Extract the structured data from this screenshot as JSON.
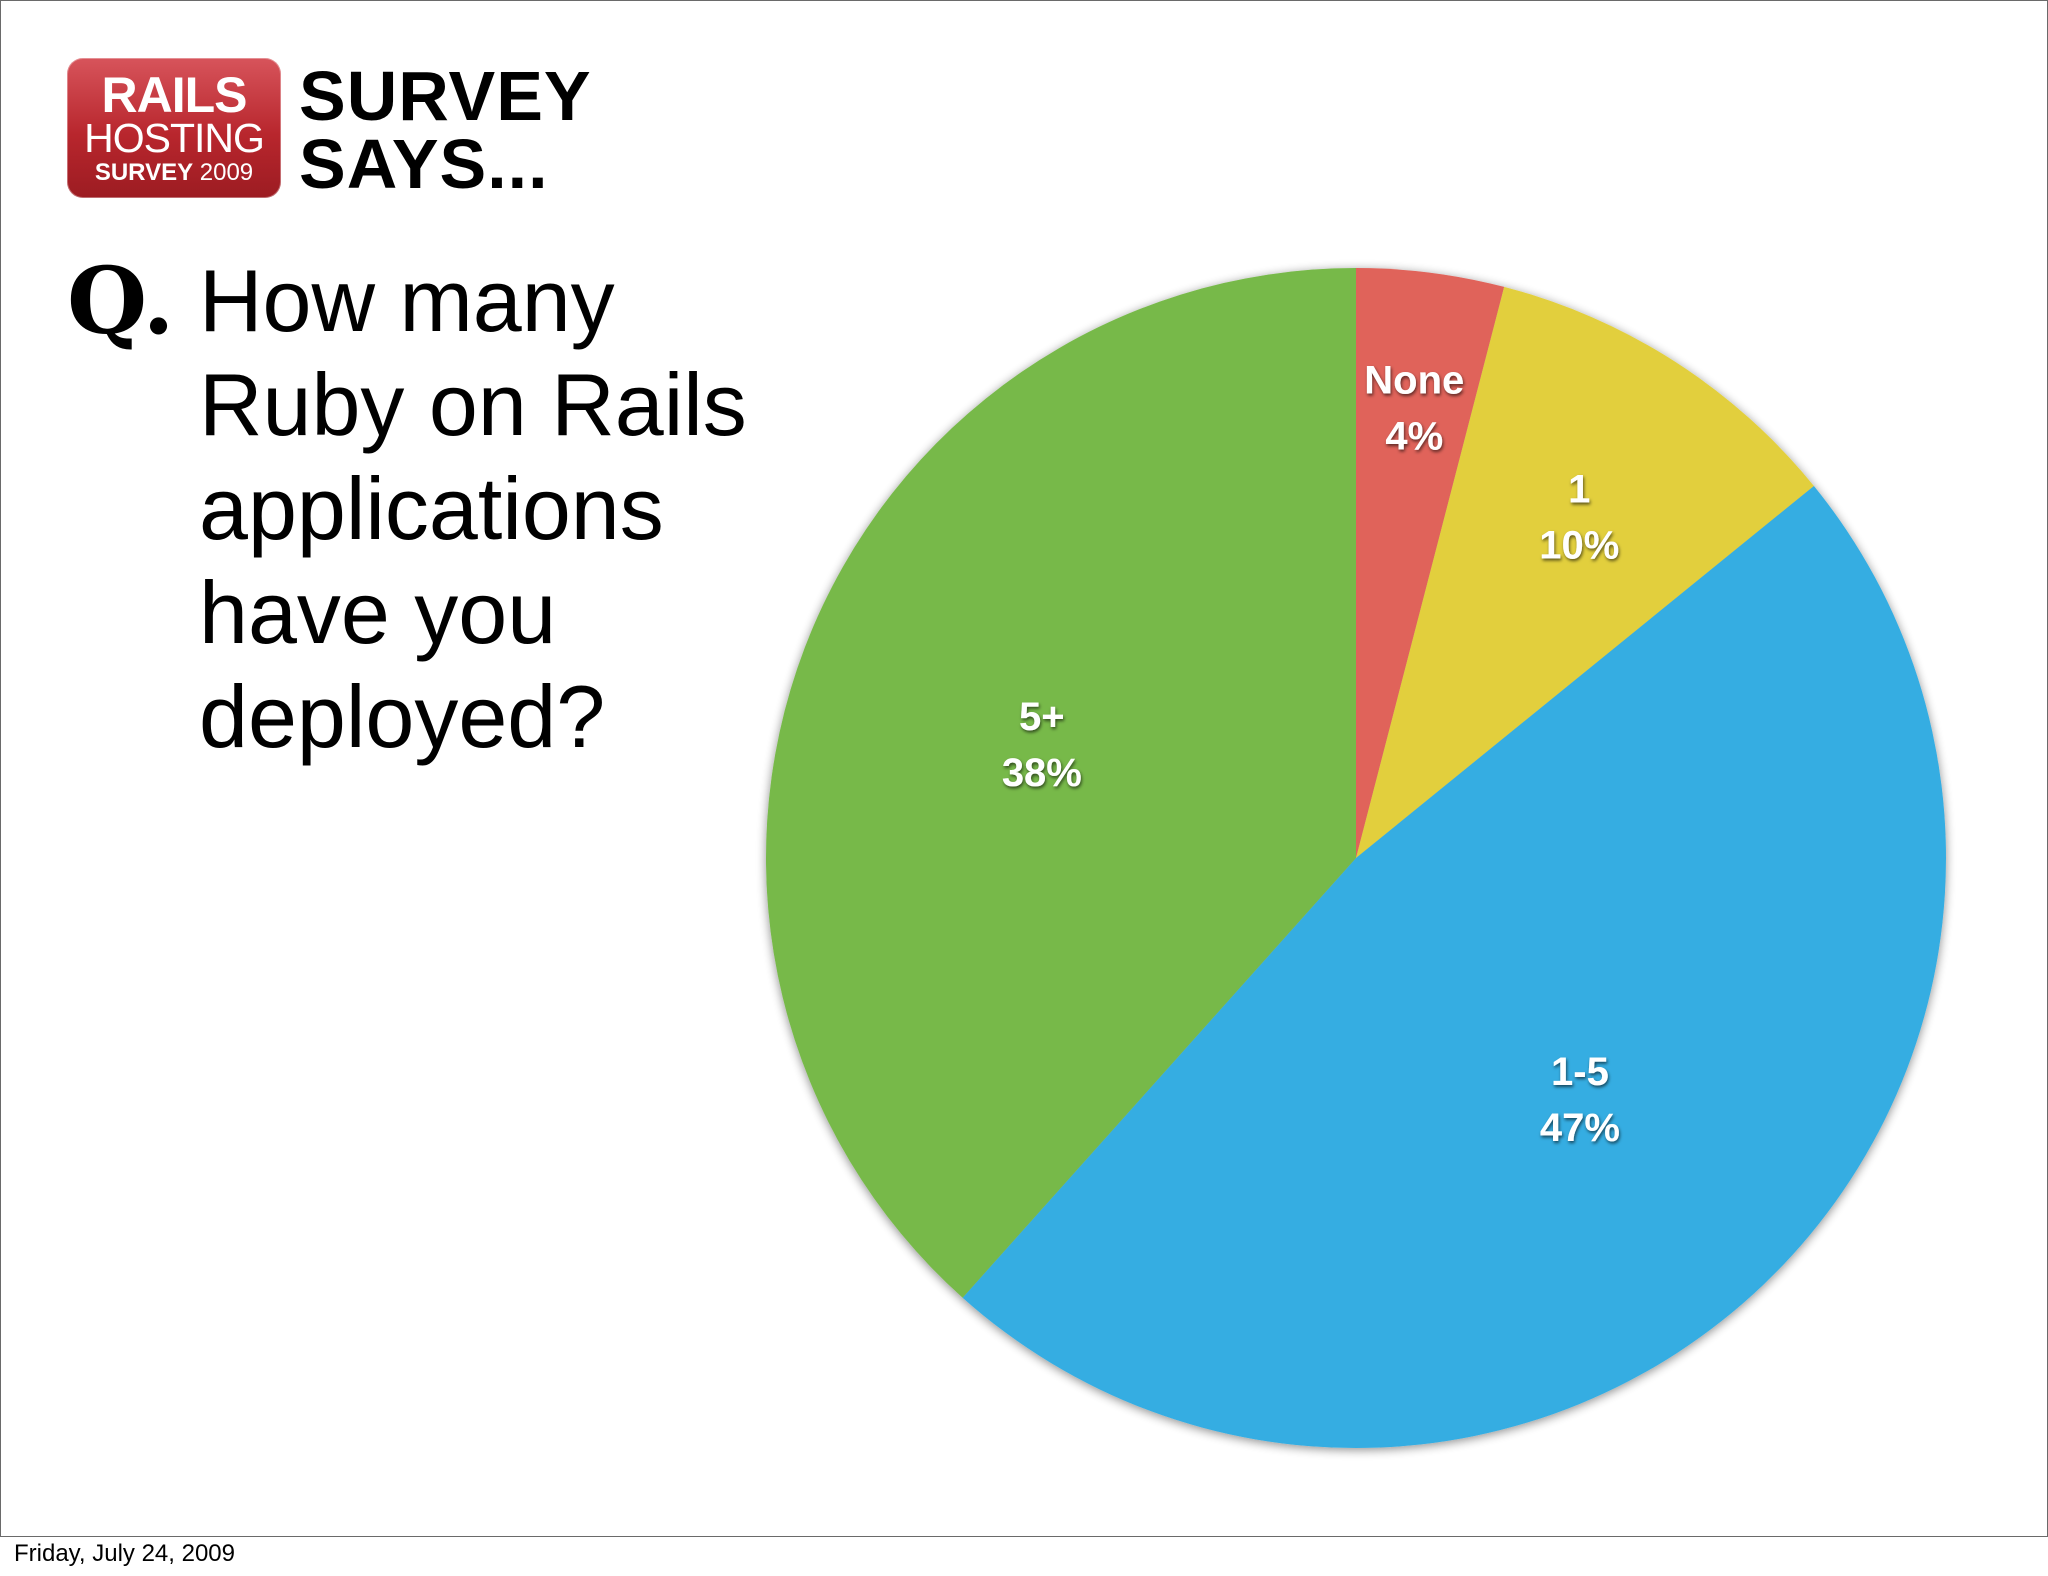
{
  "header": {
    "badge": {
      "line1": "RAILS",
      "line2": "HOSTING",
      "line3_bold": "SURVEY",
      "line3_year": "2009"
    },
    "headline_line1": "SURVEY",
    "headline_line2": "SAYS..."
  },
  "question": {
    "marker": "Q.",
    "text": "How many\nRuby on Rails\napplications\nhave you\ndeployed?"
  },
  "chart_data": {
    "type": "pie",
    "title": "",
    "slices": [
      {
        "label": "None",
        "value": 4,
        "value_label": "4%",
        "color": "#e0635a"
      },
      {
        "label": "1",
        "value": 10,
        "value_label": "10%",
        "color": "#e2cf3c"
      },
      {
        "label": "1-5",
        "value": 47,
        "value_label": "47%",
        "color": "#36ade2"
      },
      {
        "label": "5+",
        "value": 38,
        "value_label": "38%",
        "color": "#77b94a"
      }
    ],
    "start": "top, clockwise",
    "legend": "none (labels on slices)"
  },
  "footer": {
    "date": "Friday, July 24, 2009"
  }
}
